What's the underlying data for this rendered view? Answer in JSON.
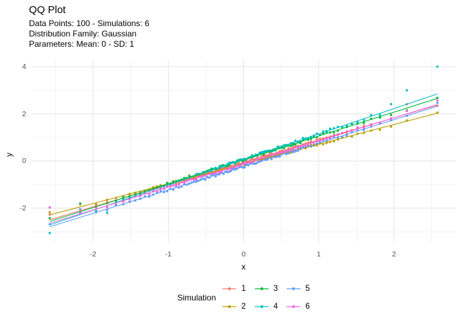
{
  "header": {
    "title": "QQ Plot",
    "subtitle_lines": [
      "Data Points: 100 - Simulations: 6",
      "Distribution Family: Gaussian",
      "Parameters: Mean: 0 - SD: 1"
    ]
  },
  "style": {
    "background": "#ffffff",
    "grid_major_color": "#e3e3e3",
    "grid_minor_color": "#f2f2f2",
    "axis_text_color": "#4d4d4d",
    "point_radius": 1.7,
    "line_width": 1.1
  },
  "chart_data": {
    "type": "scatter",
    "subtype": "qq-plot-with-qq-lines",
    "title": "QQ Plot",
    "subtitle": "Data Points: 100 - Simulations: 6 | Distribution Family: Gaussian | Parameters: Mean: 0 - SD: 1",
    "n_points_per_series": 100,
    "theoretical_distribution": "gaussian(mean=0, sd=1)",
    "x_axis": {
      "label": "x",
      "domain": [
        -2.825,
        2.825
      ],
      "ticks_major": [
        -2,
        -1,
        0,
        1,
        2
      ],
      "ticks_minor": [
        -2.5,
        -1.5,
        -0.5,
        0.5,
        1.5,
        2.5
      ],
      "grid": true
    },
    "y_axis": {
      "label": "y",
      "domain": [
        -3.43,
        4.29
      ],
      "ticks_major": [
        -2,
        0,
        2,
        4
      ],
      "ticks_minor": [
        -3,
        -1,
        1,
        3
      ],
      "grid": true
    },
    "legend": {
      "title": "Simulation",
      "position": "bottom",
      "rows": 2,
      "fill_order": "column"
    },
    "noise_model": {
      "base_sd": 0.06,
      "tail_coef": 0.13,
      "tail_start": 1.7
    },
    "series": [
      {
        "name": "1",
        "color": "#F8766D",
        "seed": 101,
        "line": {
          "slope": 0.944,
          "intercept": -0.055
        },
        "overrides": {
          "1": -2.27,
          "99": 2.41,
          "100": 2.34
        }
      },
      {
        "name": "2",
        "color": "#B79F00",
        "seed": 202,
        "line": {
          "slope": 0.837,
          "intercept": -0.125
        },
        "overrides": {
          "1": -2.17,
          "99": 1.72,
          "100": 2.05
        }
      },
      {
        "name": "3",
        "color": "#00BA38",
        "seed": 303,
        "line": {
          "slope": 1.012,
          "intercept": 0.05
        },
        "overrides": {
          "1": -2.42,
          "2": -1.8,
          "99": 2.15,
          "100": 2.68
        }
      },
      {
        "name": "4",
        "color": "#00BFC4",
        "seed": 404,
        "line": {
          "slope": 1.077,
          "intercept": 0.07
        },
        "overrides": {
          "1": -3.05,
          "4": -2.2,
          "98": 2.41,
          "99": 3.0,
          "100": 4.0
        }
      },
      {
        "name": "5",
        "color": "#619CFF",
        "seed": 505,
        "line": {
          "slope": 0.992,
          "intercept": -0.23
        },
        "overrides": {
          "1": -2.68,
          "2": -2.05,
          "99": 1.92,
          "100": 2.47
        }
      },
      {
        "name": "6",
        "color": "#F564E3",
        "seed": 606,
        "line": {
          "slope": 0.977,
          "intercept": -0.12
        },
        "overrides": {
          "1": -1.97,
          "99": 2.12,
          "100": 2.57
        }
      }
    ],
    "notable_points_readable": [
      {
        "series": "4",
        "x": 2.58,
        "y": 4.0
      },
      {
        "series": "4",
        "x": 2.17,
        "y": 3.0
      },
      {
        "series": "4",
        "x": -2.58,
        "y": -3.05
      },
      {
        "series": "4",
        "x": -1.81,
        "y": -2.2
      },
      {
        "series": "6",
        "x": -2.58,
        "y": -1.97
      },
      {
        "series": "2",
        "x": -2.58,
        "y": -2.17
      }
    ]
  }
}
